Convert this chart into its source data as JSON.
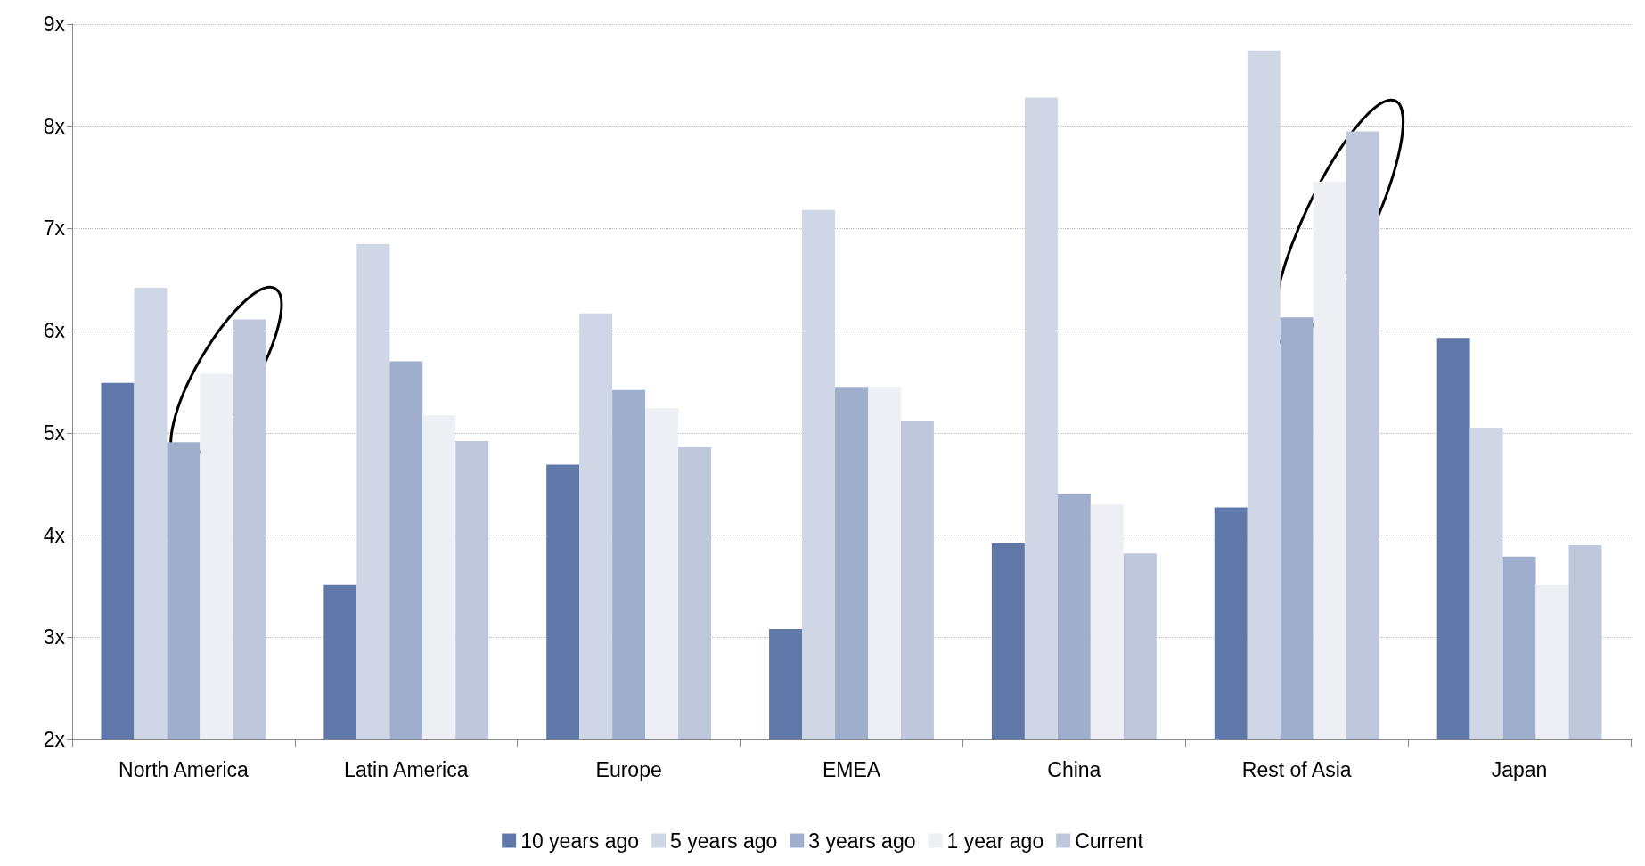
{
  "chart_data": {
    "type": "bar",
    "categories": [
      "North America",
      "Latin America",
      "Europe",
      "EMEA",
      "China",
      "Rest of Asia",
      "Japan"
    ],
    "series": [
      {
        "name": "10 years ago",
        "color": "#6077aa",
        "values": [
          5.49,
          3.51,
          4.69,
          3.08,
          3.92,
          4.27,
          5.93
        ]
      },
      {
        "name": "5 years ago",
        "color": "#cfd7e6",
        "values": [
          6.42,
          6.85,
          6.17,
          7.18,
          8.28,
          8.74,
          5.05
        ]
      },
      {
        "name": "3 years ago",
        "color": "#a0aecd",
        "values": [
          4.91,
          5.7,
          5.42,
          5.45,
          4.4,
          6.13,
          3.79
        ]
      },
      {
        "name": "1 year ago",
        "color": "#eeeff5",
        "values": [
          5.58,
          5.17,
          5.24,
          5.45,
          4.3,
          7.46,
          3.51
        ]
      },
      {
        "name": "Current",
        "color": "#bfc7dd",
        "values": [
          6.11,
          4.92,
          4.86,
          5.12,
          3.82,
          7.95,
          3.9
        ]
      }
    ],
    "ylim": [
      2,
      9
    ],
    "yticks": [
      {
        "value": 2,
        "label": "2x"
      },
      {
        "value": 3,
        "label": "3x"
      },
      {
        "value": 4,
        "label": "4x"
      },
      {
        "value": 5,
        "label": "5x"
      },
      {
        "value": 6,
        "label": "6x"
      },
      {
        "value": 7,
        "label": "7x"
      },
      {
        "value": 8,
        "label": "8x"
      },
      {
        "value": 9,
        "label": "9x"
      }
    ],
    "grid": "y",
    "legend": "bottom"
  }
}
